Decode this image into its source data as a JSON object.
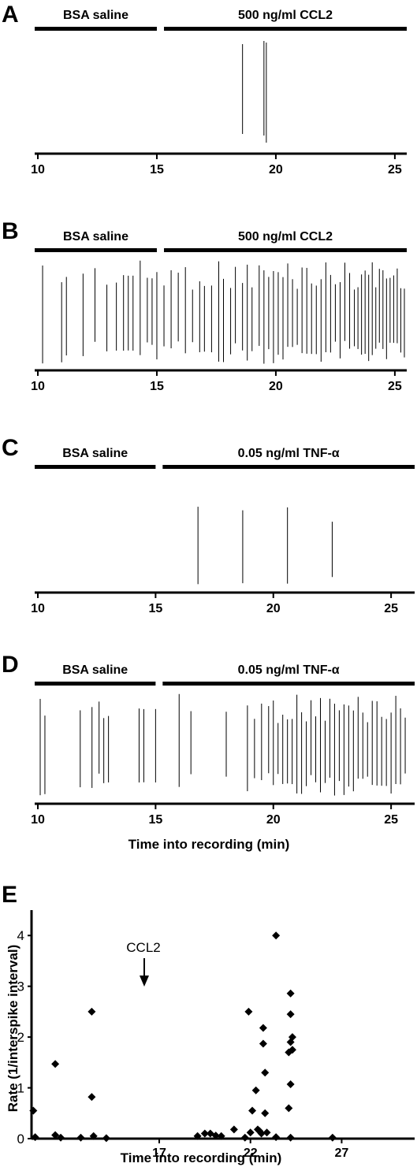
{
  "chart_data": [
    {
      "type": "raster",
      "panel": "A",
      "conditions": [
        {
          "label": "BSA saline",
          "start": 10,
          "end": 15
        },
        {
          "label": "500 ng/ml CCL2",
          "start": 15.3,
          "end": 25.5
        }
      ],
      "x_ticks": [
        10,
        15,
        20,
        25
      ],
      "xlim": [
        10,
        25.5
      ],
      "spikes": [
        18.6,
        19.5,
        19.6
      ]
    },
    {
      "type": "raster",
      "panel": "B",
      "conditions": [
        {
          "label": "BSA saline",
          "start": 10,
          "end": 15
        },
        {
          "label": "500 ng/ml CCL2",
          "start": 15.3,
          "end": 25.5
        }
      ],
      "x_ticks": [
        10,
        15,
        20,
        25
      ],
      "xlim": [
        10,
        25.5
      ],
      "spikes": [
        10.2,
        11.0,
        11.2,
        11.9,
        12.4,
        12.9,
        13.3,
        13.6,
        13.8,
        14.0,
        14.3,
        14.6,
        14.8,
        15.0,
        15.3,
        15.6,
        15.9,
        16.2,
        16.5,
        16.8,
        17.0,
        17.3,
        17.6,
        17.8,
        18.1,
        18.3,
        18.6,
        18.8,
        19.0,
        19.3,
        19.5,
        19.7,
        19.9,
        20.1,
        20.3,
        20.5,
        20.7,
        20.9,
        21.1,
        21.3,
        21.5,
        21.7,
        21.9,
        22.1,
        22.3,
        22.5,
        22.7,
        22.9,
        23.1,
        23.3,
        23.45,
        23.6,
        23.75,
        23.9,
        24.05,
        24.2,
        24.35,
        24.5,
        24.65,
        24.8,
        24.95,
        25.1,
        25.25,
        25.4
      ]
    },
    {
      "type": "raster",
      "panel": "C",
      "conditions": [
        {
          "label": "BSA saline",
          "start": 10,
          "end": 15
        },
        {
          "label": "0.05 ng/ml TNF-α",
          "start": 15.3,
          "end": 26
        }
      ],
      "x_ticks": [
        10,
        15,
        20,
        25
      ],
      "xlim": [
        10,
        26
      ],
      "spikes": [
        16.8,
        18.7,
        20.6,
        22.5
      ]
    },
    {
      "type": "raster",
      "panel": "D",
      "conditions": [
        {
          "label": "BSA saline",
          "start": 10,
          "end": 15
        },
        {
          "label": "0.05 ng/ml TNF-α",
          "start": 15.3,
          "end": 26
        }
      ],
      "x_ticks": [
        10,
        15,
        20,
        25
      ],
      "xlim": [
        10,
        26
      ],
      "xlabel": "Time into recording (min)",
      "spikes": [
        10.1,
        10.3,
        11.8,
        12.3,
        12.6,
        12.8,
        13.0,
        14.3,
        14.5,
        15.0,
        16.0,
        16.5,
        18.0,
        18.9,
        19.2,
        19.5,
        19.8,
        20.0,
        20.2,
        20.4,
        20.6,
        20.8,
        21.0,
        21.2,
        21.4,
        21.6,
        21.8,
        22.0,
        22.2,
        22.4,
        22.6,
        22.8,
        23.0,
        23.2,
        23.4,
        23.6,
        23.8,
        24.0,
        24.2,
        24.4,
        24.6,
        24.8,
        25.0,
        25.2,
        25.4,
        25.6
      ]
    },
    {
      "type": "scatter",
      "panel": "E",
      "xlabel": "Time into recording (min)",
      "ylabel": "Rate (1/interspike interval)",
      "x_ticks": [
        17,
        22,
        27
      ],
      "y_ticks": [
        0,
        1,
        2,
        3,
        4
      ],
      "xlim": [
        10,
        31
      ],
      "ylim": [
        0,
        4.5
      ],
      "annotation": {
        "text": "CCL2",
        "x": 16
      }
    }
  ],
  "scatter_points": [
    [
      10.1,
      0.55
    ],
    [
      10.2,
      0.03
    ],
    [
      11.3,
      1.47
    ],
    [
      11.3,
      0.07
    ],
    [
      11.6,
      0.02
    ],
    [
      12.7,
      0.02
    ],
    [
      13.3,
      2.5
    ],
    [
      13.3,
      0.82
    ],
    [
      13.4,
      0.05
    ],
    [
      14.1,
      0.01
    ],
    [
      19.1,
      0.05
    ],
    [
      19.5,
      0.1
    ],
    [
      19.8,
      0.1
    ],
    [
      20.1,
      0.06
    ],
    [
      20.4,
      0.05
    ],
    [
      21.1,
      0.18
    ],
    [
      21.7,
      0.02
    ],
    [
      21.9,
      2.5
    ],
    [
      22.0,
      0.12
    ],
    [
      22.1,
      0.55
    ],
    [
      22.3,
      0.95
    ],
    [
      22.4,
      0.18
    ],
    [
      22.5,
      0.15
    ],
    [
      22.6,
      0.1
    ],
    [
      22.7,
      2.18
    ],
    [
      22.7,
      1.87
    ],
    [
      22.8,
      1.3
    ],
    [
      22.8,
      0.5
    ],
    [
      22.9,
      0.12
    ],
    [
      23.4,
      4.0
    ],
    [
      23.4,
      0.03
    ],
    [
      24.2,
      2.86
    ],
    [
      24.2,
      2.45
    ],
    [
      24.3,
      2.0
    ],
    [
      24.2,
      1.9
    ],
    [
      24.3,
      1.75
    ],
    [
      24.1,
      1.7
    ],
    [
      24.2,
      1.07
    ],
    [
      24.1,
      0.6
    ],
    [
      24.2,
      0.02
    ],
    [
      26.5,
      0.02
    ]
  ]
}
